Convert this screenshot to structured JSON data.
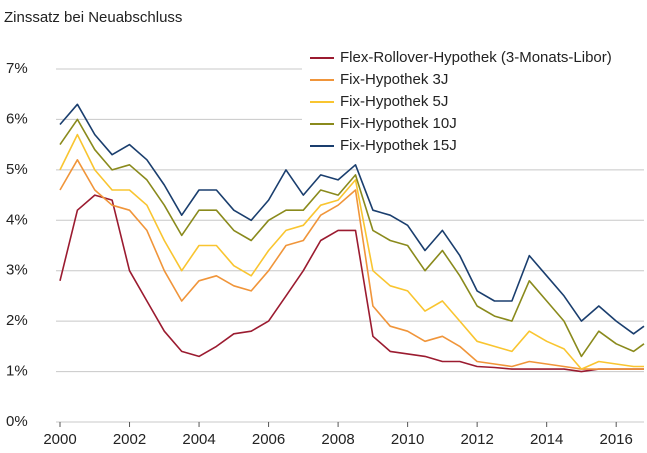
{
  "chart_data": {
    "type": "line",
    "title": "Zinssatz bei Neuabschluss",
    "x": [
      2000,
      2000.5,
      2001,
      2001.5,
      2002,
      2002.5,
      2003,
      2003.5,
      2004,
      2004.5,
      2005,
      2005.5,
      2006,
      2006.5,
      2007,
      2007.5,
      2008,
      2008.5,
      2009,
      2009.5,
      2010,
      2010.5,
      2011,
      2011.5,
      2012,
      2012.5,
      2013,
      2013.5,
      2014,
      2014.5,
      2015,
      2015.5,
      2016,
      2016.5,
      2016.8
    ],
    "series": [
      {
        "name": "Flex-Rollover-Hypothek (3-Monats-Libor)",
        "color": "#9b1b30",
        "values": [
          2.8,
          4.2,
          4.5,
          4.4,
          3.0,
          2.4,
          1.8,
          1.4,
          1.3,
          1.5,
          1.75,
          1.8,
          2.0,
          2.5,
          3.0,
          3.6,
          3.8,
          3.8,
          1.7,
          1.4,
          1.35,
          1.3,
          1.2,
          1.2,
          1.1,
          1.08,
          1.05,
          1.05,
          1.05,
          1.05,
          1.0,
          1.05,
          1.05,
          1.05,
          1.05
        ]
      },
      {
        "name": "Fix-Hypothek 3J",
        "color": "#f0953a",
        "values": [
          4.6,
          5.2,
          4.6,
          4.3,
          4.2,
          3.8,
          3.0,
          2.4,
          2.8,
          2.9,
          2.7,
          2.6,
          3.0,
          3.5,
          3.6,
          4.1,
          4.3,
          4.6,
          2.3,
          1.9,
          1.8,
          1.6,
          1.7,
          1.5,
          1.2,
          1.15,
          1.1,
          1.2,
          1.15,
          1.1,
          1.05,
          1.05,
          1.05,
          1.05,
          1.05
        ]
      },
      {
        "name": "Fix-Hypothek 5J",
        "color": "#f9c530",
        "values": [
          5.0,
          5.7,
          5.0,
          4.6,
          4.6,
          4.3,
          3.6,
          3.0,
          3.5,
          3.5,
          3.1,
          2.9,
          3.4,
          3.8,
          3.9,
          4.3,
          4.4,
          4.8,
          3.0,
          2.7,
          2.6,
          2.2,
          2.4,
          2.0,
          1.6,
          1.5,
          1.4,
          1.8,
          1.6,
          1.45,
          1.05,
          1.2,
          1.15,
          1.1,
          1.1
        ]
      },
      {
        "name": "Fix-Hypothek 10J",
        "color": "#8a8a1c",
        "values": [
          5.5,
          6.0,
          5.4,
          5.0,
          5.1,
          4.8,
          4.3,
          3.7,
          4.2,
          4.2,
          3.8,
          3.6,
          4.0,
          4.2,
          4.2,
          4.6,
          4.5,
          4.9,
          3.8,
          3.6,
          3.5,
          3.0,
          3.4,
          2.9,
          2.3,
          2.1,
          2.0,
          2.8,
          2.4,
          2.0,
          1.3,
          1.8,
          1.55,
          1.4,
          1.55
        ]
      },
      {
        "name": "Fix-Hypothek 15J",
        "color": "#1a3e6e",
        "values": [
          5.9,
          6.3,
          5.7,
          5.3,
          5.5,
          5.2,
          4.7,
          4.1,
          4.6,
          4.6,
          4.2,
          4.0,
          4.4,
          5.0,
          4.5,
          4.9,
          4.8,
          5.1,
          4.2,
          4.1,
          3.9,
          3.4,
          3.8,
          3.3,
          2.6,
          2.4,
          2.4,
          3.3,
          2.9,
          2.5,
          2.0,
          2.3,
          2.0,
          1.75,
          1.9
        ]
      }
    ],
    "xlim": [
      2000,
      2016.8
    ],
    "xticks": [
      2000,
      2002,
      2004,
      2006,
      2008,
      2010,
      2012,
      2014,
      2016
    ],
    "ylim": [
      0,
      7
    ],
    "yticks": [
      {
        "value": 0,
        "label": "0%"
      },
      {
        "value": 1,
        "label": "1%"
      },
      {
        "value": 2,
        "label": "2%"
      },
      {
        "value": 3,
        "label": "3%"
      },
      {
        "value": 4,
        "label": "4%"
      },
      {
        "value": 5,
        "label": "5%"
      },
      {
        "value": 6,
        "label": "6%"
      },
      {
        "value": 7,
        "label": "7%"
      }
    ],
    "grid": true,
    "legend": "top-right"
  }
}
